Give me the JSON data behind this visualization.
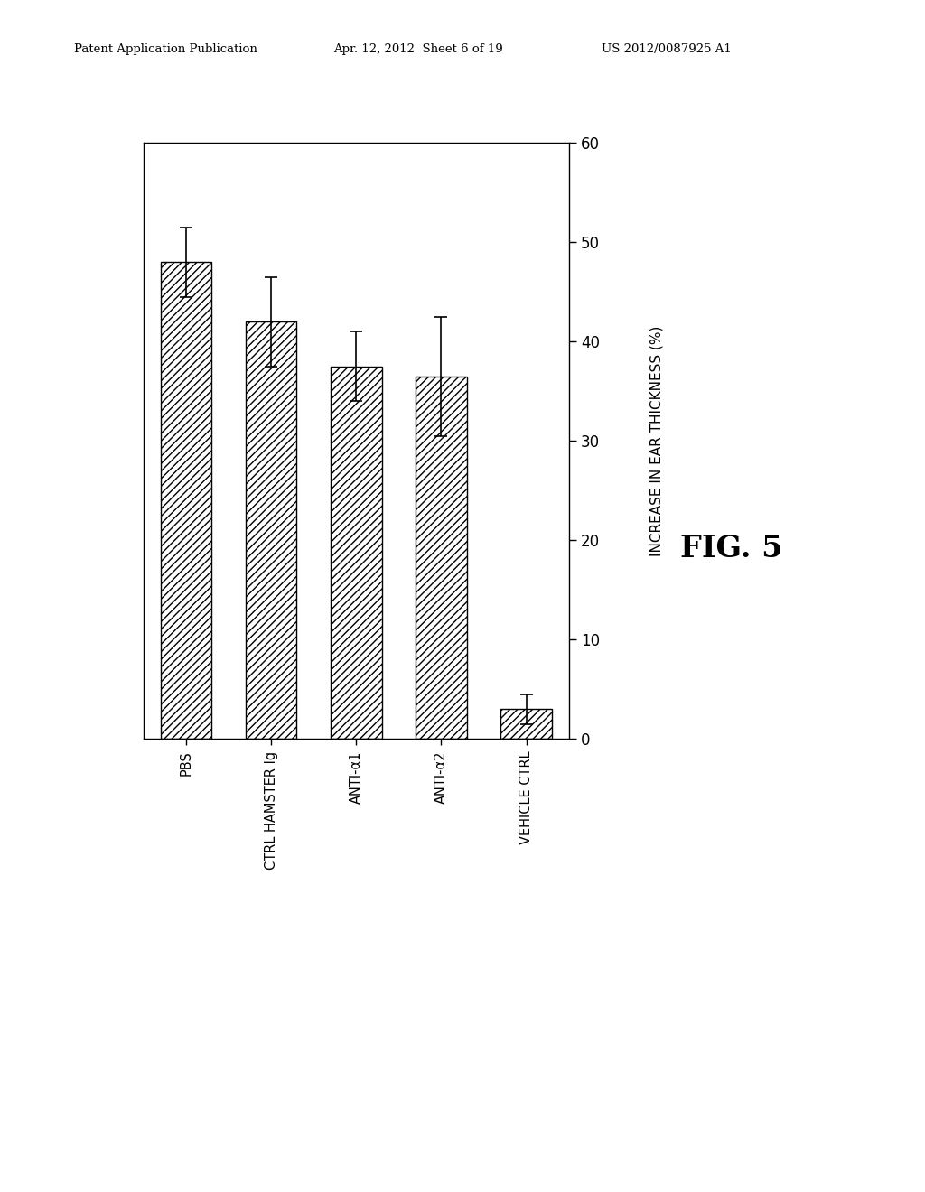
{
  "categories": [
    "PBS",
    "CTRL HAMSTER Ig",
    "ANTI-α1",
    "ANTI-α2",
    "VEHICLE CTRL"
  ],
  "values": [
    48.0,
    42.0,
    37.5,
    36.5,
    3.0
  ],
  "errors": [
    3.5,
    4.5,
    3.5,
    6.0,
    1.5
  ],
  "ylim": [
    0,
    60
  ],
  "yticks": [
    0,
    10,
    20,
    30,
    40,
    50,
    60
  ],
  "ylabel": "INCREASE IN EAR THICKNESS (%)",
  "fig_label": "FIG. 5",
  "bar_color": "#ffffff",
  "bar_edgecolor": "#000000",
  "hatch_pattern": "////",
  "header_left": "Patent Application Publication",
  "header_mid": "Apr. 12, 2012  Sheet 6 of 19",
  "header_right": "US 2012/0087925 A1",
  "background_color": "#ffffff",
  "bar_width": 0.6
}
